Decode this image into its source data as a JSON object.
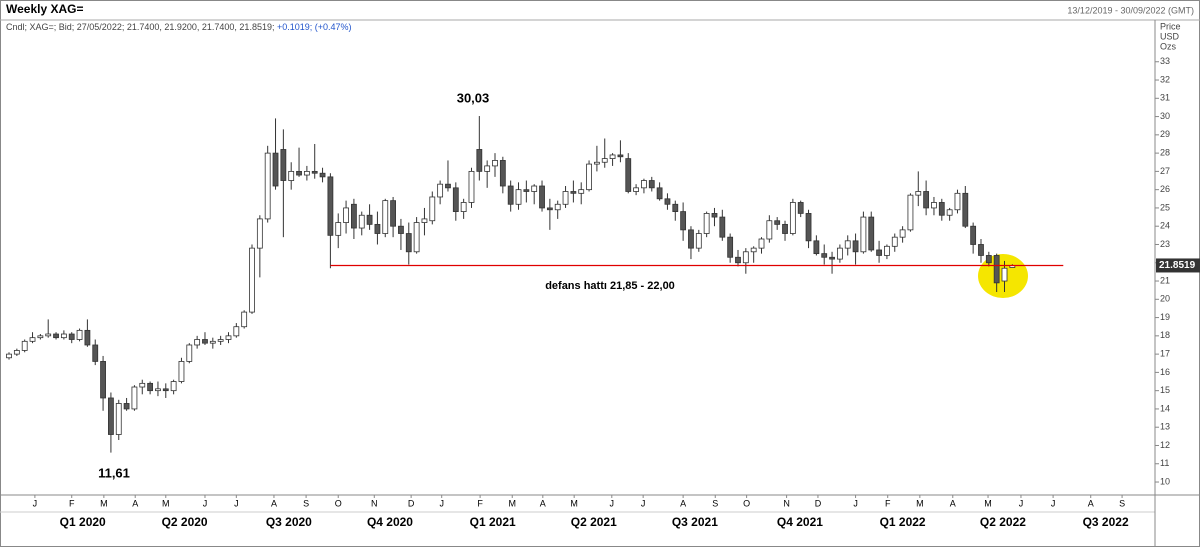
{
  "chart_data": {
    "type": "candlestick",
    "title": "Weekly XAG=",
    "date_range": "13/12/2019 - 30/09/2022 (GMT)",
    "legend_text": "Cndl; XAG=; Bid; 27/05/2022; 21.7400, 21.9200, 21.7400, 21.8519;",
    "legend_change": "+0.1019; (+0.47%)",
    "y_axis_label": [
      "Price",
      "USD",
      "Ozs"
    ],
    "annotations": [
      "30,03",
      "11,61",
      "defans hattı 21,85 - 22,00"
    ],
    "hline": {
      "value": 21.85,
      "color": "#e00000",
      "x": [
        41,
        134.5
      ]
    },
    "up_color": "#ffffff",
    "down_color": "#555555",
    "open": [
      16.8,
      17.0,
      17.2,
      17.7,
      17.9,
      18.0,
      18.1,
      17.9,
      18.1,
      17.8,
      18.3,
      17.5,
      16.6,
      14.6,
      12.6,
      14.3,
      14.0,
      15.2,
      15.4,
      15.0,
      15.1,
      15.0,
      15.5,
      16.6,
      17.5,
      17.8,
      17.6,
      17.7,
      17.8,
      18.0,
      18.5,
      19.3,
      22.8,
      24.4,
      28.0,
      28.2,
      26.5,
      27.0,
      26.8,
      27.0,
      26.9,
      26.7,
      23.5,
      24.2,
      25.2,
      23.9,
      24.6,
      24.1,
      23.6,
      25.4,
      24.0,
      23.6,
      22.6,
      24.2,
      24.3,
      25.6,
      26.3,
      26.1,
      24.8,
      25.3,
      28.2,
      27.0,
      27.3,
      27.6,
      26.2,
      25.2,
      26.0,
      25.9,
      26.2,
      25.0,
      24.9,
      25.2,
      25.9,
      25.8,
      26.0,
      27.4,
      27.5,
      27.7,
      27.9,
      27.7,
      25.9,
      26.1,
      26.5,
      26.1,
      25.5,
      25.2,
      24.8,
      23.8,
      22.8,
      23.6,
      24.7,
      24.5,
      23.4,
      22.3,
      22.0,
      22.6,
      22.8,
      23.3,
      24.3,
      24.1,
      23.6,
      25.3,
      24.7,
      23.2,
      22.5,
      22.3,
      22.2,
      22.8,
      23.2,
      22.6,
      24.5,
      22.7,
      22.4,
      22.9,
      23.4,
      23.8,
      25.7,
      25.9,
      25.0,
      25.3,
      24.6,
      24.9,
      25.8,
      24.0,
      23.0,
      22.4,
      22.4,
      21.0,
      21.74
    ],
    "high": [
      17.1,
      17.3,
      17.8,
      18.2,
      18.1,
      18.9,
      18.2,
      18.3,
      18.2,
      18.4,
      18.9,
      17.8,
      16.9,
      14.9,
      14.5,
      14.6,
      15.3,
      15.6,
      15.5,
      15.5,
      15.4,
      15.6,
      16.8,
      17.6,
      18.0,
      18.2,
      17.9,
      18.0,
      18.2,
      18.7,
      19.4,
      23.0,
      24.6,
      28.4,
      29.9,
      29.3,
      27.5,
      28.3,
      27.3,
      28.5,
      27.2,
      26.9,
      24.7,
      25.4,
      25.5,
      24.8,
      25.2,
      24.8,
      25.5,
      25.6,
      24.4,
      24.2,
      24.5,
      25.0,
      25.9,
      26.5,
      27.6,
      26.4,
      25.5,
      27.2,
      30.03,
      27.6,
      28.0,
      27.8,
      26.5,
      26.4,
      26.5,
      26.3,
      26.5,
      25.5,
      25.4,
      26.2,
      26.5,
      26.4,
      27.6,
      28.4,
      28.8,
      28.0,
      28.7,
      28.0,
      26.3,
      26.6,
      26.7,
      26.4,
      25.8,
      25.4,
      25.3,
      24.0,
      23.8,
      24.8,
      25.0,
      24.9,
      23.6,
      22.7,
      22.8,
      22.9,
      23.4,
      24.6,
      24.5,
      24.3,
      25.5,
      25.4,
      24.9,
      23.5,
      23.0,
      22.6,
      23.0,
      23.5,
      23.6,
      24.8,
      24.8,
      23.2,
      23.0,
      23.6,
      24.0,
      25.8,
      27.0,
      26.5,
      25.6,
      25.5,
      25.0,
      26.0,
      26.2,
      24.2,
      23.3,
      22.6,
      22.5,
      22.1,
      21.92
    ],
    "low": [
      16.7,
      16.9,
      17.1,
      17.6,
      17.8,
      17.9,
      17.8,
      17.8,
      17.6,
      17.7,
      17.4,
      16.4,
      13.9,
      11.61,
      12.3,
      13.9,
      13.9,
      14.8,
      14.8,
      14.7,
      14.6,
      14.8,
      15.4,
      16.5,
      17.3,
      17.5,
      17.3,
      17.5,
      17.6,
      17.9,
      18.4,
      19.2,
      21.2,
      24.2,
      26.0,
      23.4,
      26.0,
      26.7,
      26.5,
      26.6,
      26.4,
      21.7,
      22.8,
      23.6,
      23.3,
      23.5,
      23.8,
      23.0,
      23.4,
      23.4,
      22.7,
      21.9,
      22.5,
      23.5,
      24.1,
      25.2,
      25.9,
      24.3,
      24.4,
      25.0,
      26.5,
      26.1,
      26.7,
      25.8,
      24.8,
      24.9,
      25.3,
      25.2,
      24.8,
      23.8,
      24.4,
      25.0,
      25.3,
      25.2,
      25.9,
      27.0,
      27.2,
      27.3,
      27.5,
      25.8,
      25.7,
      25.8,
      25.9,
      25.4,
      24.9,
      24.3,
      23.2,
      22.2,
      22.6,
      23.4,
      24.0,
      23.2,
      22.0,
      21.8,
      21.4,
      22.0,
      22.5,
      23.1,
      23.8,
      23.2,
      23.5,
      24.5,
      22.8,
      22.4,
      21.9,
      21.4,
      22.0,
      22.4,
      21.9,
      22.5,
      22.6,
      22.0,
      22.2,
      22.6,
      23.1,
      23.7,
      25.1,
      24.6,
      24.6,
      24.3,
      24.3,
      24.7,
      23.9,
      22.5,
      22.0,
      21.8,
      20.4,
      20.4,
      21.74
    ],
    "close": [
      17.0,
      17.2,
      17.7,
      17.9,
      18.0,
      18.1,
      17.9,
      18.1,
      17.8,
      18.3,
      17.5,
      16.6,
      14.6,
      12.6,
      14.3,
      14.0,
      15.2,
      15.4,
      15.0,
      15.1,
      15.0,
      15.5,
      16.6,
      17.5,
      17.8,
      17.6,
      17.7,
      17.8,
      18.0,
      18.5,
      19.3,
      22.8,
      24.4,
      28.0,
      26.2,
      26.5,
      27.0,
      26.8,
      27.0,
      26.9,
      26.7,
      23.5,
      24.2,
      25.0,
      23.9,
      24.6,
      24.1,
      23.6,
      25.4,
      24.0,
      23.6,
      22.6,
      24.2,
      24.4,
      25.6,
      26.3,
      26.1,
      24.8,
      25.3,
      27.0,
      27.0,
      27.3,
      27.6,
      26.2,
      25.2,
      26.0,
      25.9,
      26.2,
      25.0,
      24.9,
      25.2,
      25.9,
      25.8,
      26.0,
      27.4,
      27.5,
      27.7,
      27.9,
      27.8,
      25.9,
      26.1,
      26.5,
      26.1,
      25.5,
      25.2,
      24.8,
      23.8,
      22.8,
      23.6,
      24.7,
      24.5,
      23.4,
      22.3,
      22.0,
      22.6,
      22.8,
      23.3,
      24.3,
      24.1,
      23.6,
      25.3,
      24.7,
      23.2,
      22.5,
      22.3,
      22.2,
      22.8,
      23.2,
      22.6,
      24.5,
      22.7,
      22.4,
      22.9,
      23.4,
      23.8,
      25.7,
      25.9,
      25.0,
      25.3,
      24.6,
      24.9,
      25.8,
      24.0,
      23.0,
      22.4,
      22.0,
      20.9,
      21.7,
      21.8519
    ],
    "xlim": [
      -1.15,
      146.2
    ],
    "xticks": [
      {
        "value": 3.3,
        "label": "J"
      },
      {
        "value": 8.0,
        "label": "F"
      },
      {
        "value": 12.1,
        "label": "M"
      },
      {
        "value": 16.1,
        "label": "A"
      },
      {
        "value": 20.0,
        "label": "M"
      },
      {
        "value": 25.0,
        "label": "J"
      },
      {
        "value": 29.0,
        "label": "J"
      },
      {
        "value": 33.8,
        "label": "A"
      },
      {
        "value": 37.9,
        "label": "S"
      },
      {
        "value": 42.0,
        "label": "O"
      },
      {
        "value": 46.6,
        "label": "N"
      },
      {
        "value": 51.3,
        "label": "D"
      },
      {
        "value": 55.2,
        "label": "J"
      },
      {
        "value": 60.1,
        "label": "F"
      },
      {
        "value": 64.2,
        "label": "M"
      },
      {
        "value": 68.1,
        "label": "A"
      },
      {
        "value": 72.1,
        "label": "M"
      },
      {
        "value": 76.9,
        "label": "J"
      },
      {
        "value": 80.9,
        "label": "J"
      },
      {
        "value": 86.0,
        "label": "A"
      },
      {
        "value": 90.1,
        "label": "S"
      },
      {
        "value": 94.1,
        "label": "O"
      },
      {
        "value": 99.2,
        "label": "N"
      },
      {
        "value": 103.2,
        "label": "D"
      },
      {
        "value": 108.0,
        "label": "J"
      },
      {
        "value": 112.1,
        "label": "F"
      },
      {
        "value": 116.2,
        "label": "M"
      },
      {
        "value": 120.4,
        "label": "A"
      },
      {
        "value": 124.9,
        "label": "M"
      },
      {
        "value": 129.1,
        "label": "J"
      },
      {
        "value": 133.2,
        "label": "J"
      },
      {
        "value": 138.0,
        "label": "A"
      },
      {
        "value": 142.0,
        "label": "S"
      }
    ],
    "quarter_ticks": [
      {
        "value": 9.4,
        "label": "Q1 2020"
      },
      {
        "value": 22.4,
        "label": "Q2 2020"
      },
      {
        "value": 35.7,
        "label": "Q3 2020"
      },
      {
        "value": 48.6,
        "label": "Q4 2020"
      },
      {
        "value": 61.7,
        "label": "Q1 2021"
      },
      {
        "value": 74.6,
        "label": "Q2 2021"
      },
      {
        "value": 87.5,
        "label": "Q3 2021"
      },
      {
        "value": 100.9,
        "label": "Q4 2021"
      },
      {
        "value": 114.0,
        "label": "Q1 2022"
      },
      {
        "value": 126.8,
        "label": "Q2 2022"
      },
      {
        "value": 139.9,
        "label": "Q3 2022"
      }
    ],
    "ylim": [
      9.29,
      34.3
    ],
    "yticks": [
      10,
      11,
      12,
      13,
      14,
      15,
      16,
      17,
      18,
      19,
      20,
      21,
      22,
      23,
      24,
      25,
      26,
      27,
      28,
      29,
      30,
      31,
      32,
      33
    ]
  }
}
